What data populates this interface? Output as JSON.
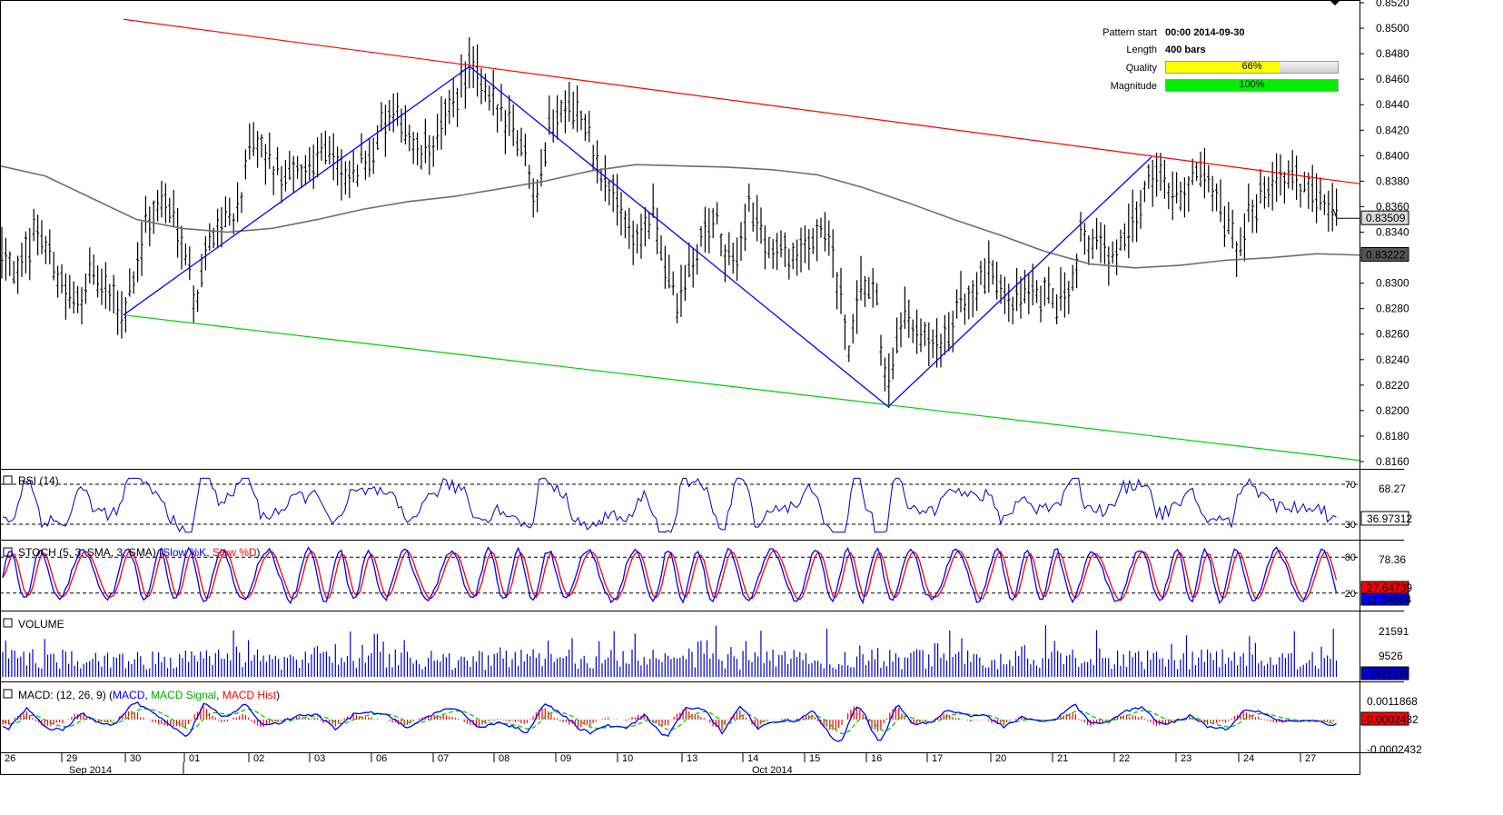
{
  "colors": {
    "price_bars": "#000000",
    "zigzag": "#0000ff",
    "upper_trendline": "#ff0000",
    "lower_trendline": "#00cc00",
    "moving_average": "#6e6e6e",
    "rsi": "#0000cc",
    "stoch_k": "#0000ff",
    "stoch_d": "#ff0000",
    "volume": "#0000cc",
    "macd": "#0000ff",
    "macd_signal": "#00cc00",
    "macd_hist": "#ff0000",
    "quality_bar": "#ffff00",
    "magnitude_bar": "#00ee00"
  },
  "pattern_info": {
    "pattern_start_label": "Pattern start",
    "pattern_start_value": "00:00 2014-09-30",
    "length_label": "Length",
    "length_value": "400 bars",
    "quality_label": "Quality",
    "quality_value": "66%",
    "quality_fraction": 0.66,
    "magnitude_label": "Magnitude",
    "magnitude_value": "100%",
    "magnitude_fraction": 1.0
  },
  "panels": {
    "rsi_title": "RSI (14)",
    "stoch_title_prefix": "STOCH (5, 3, SMA, 3, SMA)",
    "stoch_k_label": "Slow %K",
    "stoch_d_label": "Slow %D",
    "volume_title": "VOLUME",
    "macd_title_prefix": "MACD: (12, 26, 9)",
    "macd_label": "MACD",
    "macd_signal_label": "MACD Signal",
    "macd_hist_label": "MACD Hist"
  },
  "chart_data": {
    "type": "line",
    "main": {
      "ylim": [
        0.816,
        0.852
      ],
      "ticks": [
        "0.8520",
        "0.8500",
        "0.8480",
        "0.8460",
        "0.8440",
        "0.8420",
        "0.8400",
        "0.8380",
        "0.8360",
        "0.8340",
        "0.8320",
        "0.8300",
        "0.8280",
        "0.8260",
        "0.8240",
        "0.8220",
        "0.8200",
        "0.8180",
        "0.8160"
      ],
      "tick_values": [
        0.852,
        0.85,
        0.848,
        0.846,
        0.844,
        0.842,
        0.84,
        0.838,
        0.836,
        0.834,
        0.832,
        0.83,
        0.828,
        0.826,
        0.824,
        0.822,
        0.82,
        0.818,
        0.816
      ],
      "last_price_label": "0.83509",
      "last_price": 0.83509,
      "ma_label": "0.83222",
      "ma_value": 0.83222,
      "price_path": [
        [
          0,
          0.8335
        ],
        [
          20,
          0.8305
        ],
        [
          40,
          0.8345
        ],
        [
          60,
          0.8315
        ],
        [
          80,
          0.828
        ],
        [
          100,
          0.8305
        ],
        [
          120,
          0.829
        ],
        [
          136,
          0.8275
        ],
        [
          160,
          0.8345
        ],
        [
          180,
          0.8365
        ],
        [
          200,
          0.834
        ],
        [
          215,
          0.8285
        ],
        [
          235,
          0.8345
        ],
        [
          260,
          0.8355
        ],
        [
          280,
          0.841
        ],
        [
          300,
          0.839
        ],
        [
          320,
          0.838
        ],
        [
          340,
          0.8395
        ],
        [
          360,
          0.841
        ],
        [
          380,
          0.8375
        ],
        [
          400,
          0.8395
        ],
        [
          420,
          0.842
        ],
        [
          440,
          0.843
        ],
        [
          460,
          0.84
        ],
        [
          480,
          0.841
        ],
        [
          500,
          0.8445
        ],
        [
          517,
          0.847
        ],
        [
          540,
          0.844
        ],
        [
          560,
          0.843
        ],
        [
          580,
          0.84
        ],
        [
          590,
          0.837
        ],
        [
          605,
          0.842
        ],
        [
          625,
          0.8445
        ],
        [
          640,
          0.843
        ],
        [
          660,
          0.8385
        ],
        [
          680,
          0.8365
        ],
        [
          700,
          0.8335
        ],
        [
          720,
          0.835
        ],
        [
          745,
          0.828
        ],
        [
          765,
          0.832
        ],
        [
          785,
          0.8355
        ],
        [
          805,
          0.831
        ],
        [
          825,
          0.836
        ],
        [
          845,
          0.833
        ],
        [
          865,
          0.8325
        ],
        [
          885,
          0.832
        ],
        [
          905,
          0.835
        ],
        [
          920,
          0.831
        ],
        [
          935,
          0.8245
        ],
        [
          950,
          0.83
        ],
        [
          965,
          0.8285
        ],
        [
          978,
          0.8215
        ],
        [
          995,
          0.827
        ],
        [
          1015,
          0.8255
        ],
        [
          1035,
          0.8245
        ],
        [
          1055,
          0.828
        ],
        [
          1075,
          0.8295
        ],
        [
          1095,
          0.831
        ],
        [
          1115,
          0.8285
        ],
        [
          1135,
          0.8295
        ],
        [
          1155,
          0.8285
        ],
        [
          1175,
          0.829
        ],
        [
          1190,
          0.834
        ],
        [
          1210,
          0.833
        ],
        [
          1230,
          0.832
        ],
        [
          1250,
          0.835
        ],
        [
          1268,
          0.839
        ],
        [
          1285,
          0.8375
        ],
        [
          1305,
          0.837
        ],
        [
          1320,
          0.8385
        ],
        [
          1340,
          0.836
        ],
        [
          1362,
          0.8325
        ],
        [
          1380,
          0.836
        ],
        [
          1400,
          0.8385
        ],
        [
          1420,
          0.838
        ],
        [
          1440,
          0.8375
        ],
        [
          1460,
          0.837
        ],
        [
          1472,
          0.8351
        ]
      ],
      "zigzag": [
        [
          136,
          0.8275
        ],
        [
          517,
          0.847
        ],
        [
          978,
          0.8203
        ],
        [
          1268,
          0.8399
        ]
      ],
      "upper_trendline": [
        [
          136,
          0.8507
        ],
        [
          1497,
          0.8378
        ]
      ],
      "lower_trendline": [
        [
          136,
          0.8275
        ],
        [
          1497,
          0.8161
        ]
      ],
      "moving_average": [
        [
          0,
          0.8392
        ],
        [
          50,
          0.8384
        ],
        [
          100,
          0.8367
        ],
        [
          150,
          0.835
        ],
        [
          200,
          0.8343
        ],
        [
          250,
          0.834
        ],
        [
          300,
          0.8343
        ],
        [
          350,
          0.835
        ],
        [
          400,
          0.8358
        ],
        [
          450,
          0.8364
        ],
        [
          500,
          0.8368
        ],
        [
          550,
          0.8374
        ],
        [
          600,
          0.838
        ],
        [
          650,
          0.8388
        ],
        [
          700,
          0.8393
        ],
        [
          750,
          0.8392
        ],
        [
          800,
          0.8391
        ],
        [
          850,
          0.8389
        ],
        [
          900,
          0.8385
        ],
        [
          950,
          0.8375
        ],
        [
          1000,
          0.8363
        ],
        [
          1050,
          0.835
        ],
        [
          1100,
          0.8338
        ],
        [
          1150,
          0.8325
        ],
        [
          1200,
          0.8315
        ],
        [
          1250,
          0.8312
        ],
        [
          1300,
          0.8314
        ],
        [
          1350,
          0.8318
        ],
        [
          1400,
          0.832
        ],
        [
          1450,
          0.8323
        ],
        [
          1497,
          0.8322
        ]
      ]
    },
    "rsi": {
      "levels": [
        70,
        30
      ],
      "level_labels": [
        "70",
        "30"
      ],
      "scale_label": "68.27",
      "value_label": "36.97312"
    },
    "stoch": {
      "levels": [
        80,
        20
      ],
      "level_labels": [
        "80",
        "20"
      ],
      "scale_label": "78.36",
      "k_value_label": "27.64739",
      "d_value_label": "11.34864"
    },
    "volume": {
      "scale_labels": [
        "21591",
        "9526"
      ],
      "value_label": "1425.86"
    },
    "macd": {
      "scale_labels": [
        "0.0011868",
        "-0.0002432"
      ],
      "value_label": "-0.0002432"
    },
    "x_axis": {
      "day_labels": [
        "26",
        "29",
        "30",
        "01",
        "02",
        "03",
        "06",
        "07",
        "08",
        "09",
        "10",
        "13",
        "14",
        "15",
        "16",
        "17",
        "20",
        "21",
        "22",
        "23",
        "24",
        "27"
      ],
      "month_labels": [
        "Sep 2014",
        "Oct 2014"
      ]
    }
  }
}
